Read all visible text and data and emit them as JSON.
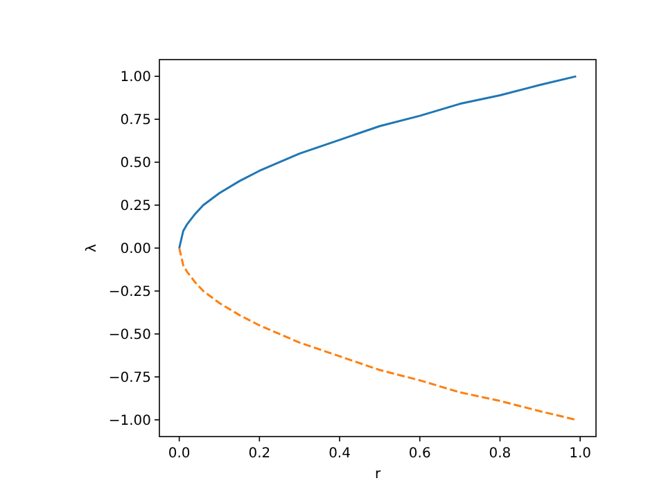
{
  "chart_data": {
    "type": "line",
    "xlabel": "r",
    "ylabel": "λ",
    "x": [
      0,
      0.01,
      0.02,
      0.04,
      0.06,
      0.1,
      0.15,
      0.2,
      0.3,
      0.4,
      0.5,
      0.6,
      0.7,
      0.8,
      0.9,
      0.99
    ],
    "series": [
      {
        "color": "#1f77b4",
        "line_style": "solid",
        "values": [
          0,
          0.1,
          0.14,
          0.2,
          0.25,
          0.32,
          0.39,
          0.45,
          0.55,
          0.63,
          0.71,
          0.77,
          0.84,
          0.89,
          0.95,
          1.0
        ]
      },
      {
        "color": "#ff7f0e",
        "line_style": "dashed",
        "values": [
          0,
          -0.1,
          -0.14,
          -0.2,
          -0.25,
          -0.32,
          -0.39,
          -0.45,
          -0.55,
          -0.63,
          -0.71,
          -0.77,
          -0.84,
          -0.89,
          -0.95,
          -1.0
        ]
      }
    ],
    "xlim": [
      -0.0495,
      1.0395
    ],
    "xticks": [
      {
        "value": 0,
        "label": "0.0"
      },
      {
        "value": 0.2,
        "label": "0.2"
      },
      {
        "value": 0.4,
        "label": "0.4"
      },
      {
        "value": 0.6,
        "label": "0.6"
      },
      {
        "value": 0.8,
        "label": "0.8"
      },
      {
        "value": 1,
        "label": "1.0"
      }
    ],
    "ylim": [
      -1.0975,
      1.0975
    ],
    "yticks": [
      {
        "value": -1,
        "label": "−1.00"
      },
      {
        "value": -0.75,
        "label": "−0.75"
      },
      {
        "value": -0.5,
        "label": "−0.50"
      },
      {
        "value": -0.25,
        "label": "−0.25"
      },
      {
        "value": 0,
        "label": "0.00"
      },
      {
        "value": 0.25,
        "label": "0.25"
      },
      {
        "value": 0.5,
        "label": "0.50"
      },
      {
        "value": 0.75,
        "label": "0.75"
      },
      {
        "value": 1,
        "label": "1.00"
      }
    ],
    "grid": false
  }
}
